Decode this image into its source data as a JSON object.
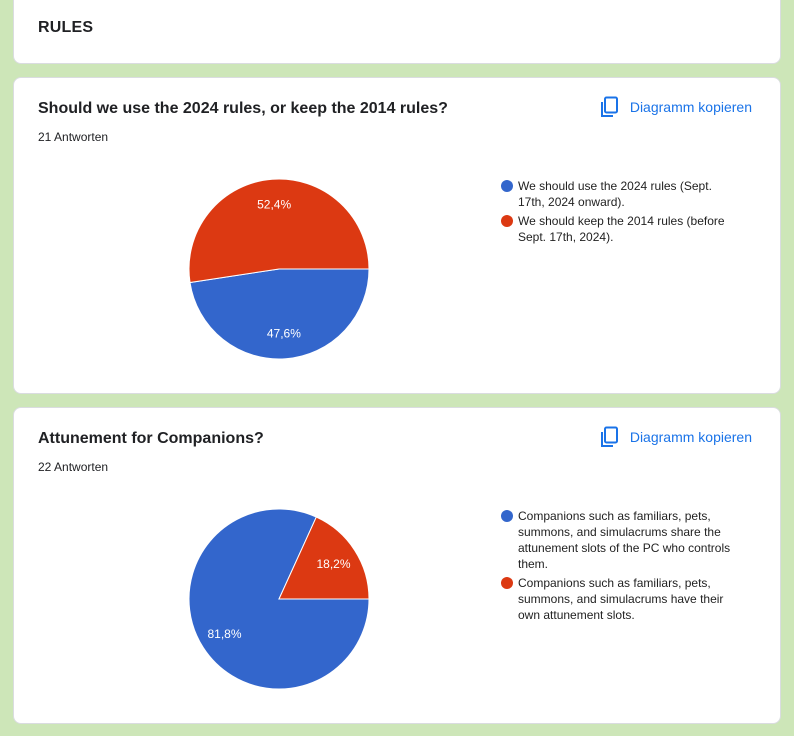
{
  "section": {
    "title": "RULES"
  },
  "copy_label": "Diagramm kopieren",
  "chart_data": [
    {
      "type": "pie",
      "title": "Should we use the 2024 rules, or keep the 2014 rules?",
      "subtitle": "21 Antworten",
      "slices": [
        {
          "label": "We should use the 2024 rules (Sept. 17th, 2024 onward).",
          "value": 47.6,
          "display": "47,6%",
          "color": "#3366cc"
        },
        {
          "label": "We should keep the 2014 rules (before Sept. 17th, 2024).",
          "value": 52.4,
          "display": "52,4%",
          "color": "#dc3912"
        }
      ],
      "legend_position": "right"
    },
    {
      "type": "pie",
      "title": "Attunement for Companions?",
      "subtitle": "22 Antworten",
      "slices": [
        {
          "label": "Companions such as familiars, pets, summons, and simulacrums share the attunement slots of the PC who controls them.",
          "value": 81.8,
          "display": "81,8%",
          "color": "#3366cc"
        },
        {
          "label": "Companions such as familiars, pets, summons, and simulacrums have their own attunement slots.",
          "value": 18.2,
          "display": "18,2%",
          "color": "#dc3912"
        }
      ],
      "legend_position": "right"
    }
  ]
}
